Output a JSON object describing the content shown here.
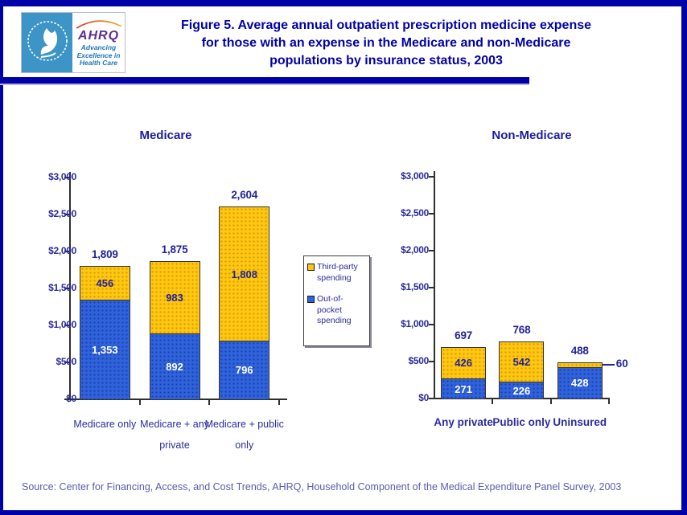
{
  "header": {
    "logo": {
      "acronym": "AHRQ",
      "tagline_lines": [
        "Advancing",
        "Excellence in",
        "Health Care"
      ]
    },
    "title_lines": [
      "Figure 5. Average annual outpatient prescription medicine expense",
      "for those with an expense in the Medicare and non-Medicare",
      "populations by insurance status, 2003"
    ]
  },
  "legend": {
    "items": [
      {
        "label": "Third-party spending",
        "color": "#FFC70F"
      },
      {
        "label": "Out-of-pocket spending",
        "color": "#2F63DC"
      }
    ]
  },
  "chart_data": [
    {
      "type": "bar",
      "stacked": true,
      "title": "Medicare",
      "categories": [
        "Medicare only",
        "Medicare + any private",
        "Medicare + public only"
      ],
      "category_lines": [
        [
          "Medicare only"
        ],
        [
          "Medicare + any",
          "private"
        ],
        [
          "Medicare + public",
          "only"
        ]
      ],
      "series": [
        {
          "name": "Out-of-pocket spending",
          "color": "#2F63DC",
          "values": [
            1353,
            892,
            796
          ]
        },
        {
          "name": "Third-party spending",
          "color": "#FFC70F",
          "values": [
            456,
            983,
            1808
          ]
        }
      ],
      "totals": [
        1809,
        1875,
        2604
      ],
      "xlabel": "",
      "ylabel": "",
      "ylim": [
        0,
        3000
      ],
      "ytick_step": 500,
      "ytick_labels": [
        "$0",
        "$500",
        "$1,000",
        "$1,500",
        "$2,000",
        "$2,500",
        "$3,000"
      ],
      "grid": false,
      "legend_position": "right-of-chart"
    },
    {
      "type": "bar",
      "stacked": true,
      "title": "Non-Medicare",
      "categories": [
        "Any private",
        "Public only",
        "Uninsured"
      ],
      "category_lines": [
        [
          "Any private"
        ],
        [
          "Public only"
        ],
        [
          "Uninsured"
        ]
      ],
      "series": [
        {
          "name": "Out-of-pocket spending",
          "color": "#2F63DC",
          "values": [
            271,
            226,
            428
          ]
        },
        {
          "name": "Third-party spending",
          "color": "#FFC70F",
          "values": [
            426,
            542,
            60
          ]
        }
      ],
      "totals": [
        697,
        768,
        488
      ],
      "xlabel": "",
      "ylabel": "",
      "ylim": [
        0,
        3000
      ],
      "ytick_step": 500,
      "ytick_labels": [
        "$0",
        "$500",
        "$1,000",
        "$1,500",
        "$2,000",
        "$2,500",
        "$3,000"
      ],
      "grid": false,
      "legend_position": "left-of-chart"
    }
  ],
  "source_note": "Source: Center for Financing, Access, and Cost Trends, AHRQ, Household Component of the Medical Expenditure Panel Survey, 2003",
  "colors": {
    "border_navy": "#0000A8",
    "title_navy": "#0000A6",
    "chart_text_navy": "#23239B",
    "bar_blue": "#2F63DC",
    "bar_yellow": "#FFC70F",
    "source_text": "#5B5BB0",
    "logo_teal": "#3D94C6",
    "ahrq_purple": "#5C2E91",
    "tagline_blue": "#1B75BC"
  }
}
